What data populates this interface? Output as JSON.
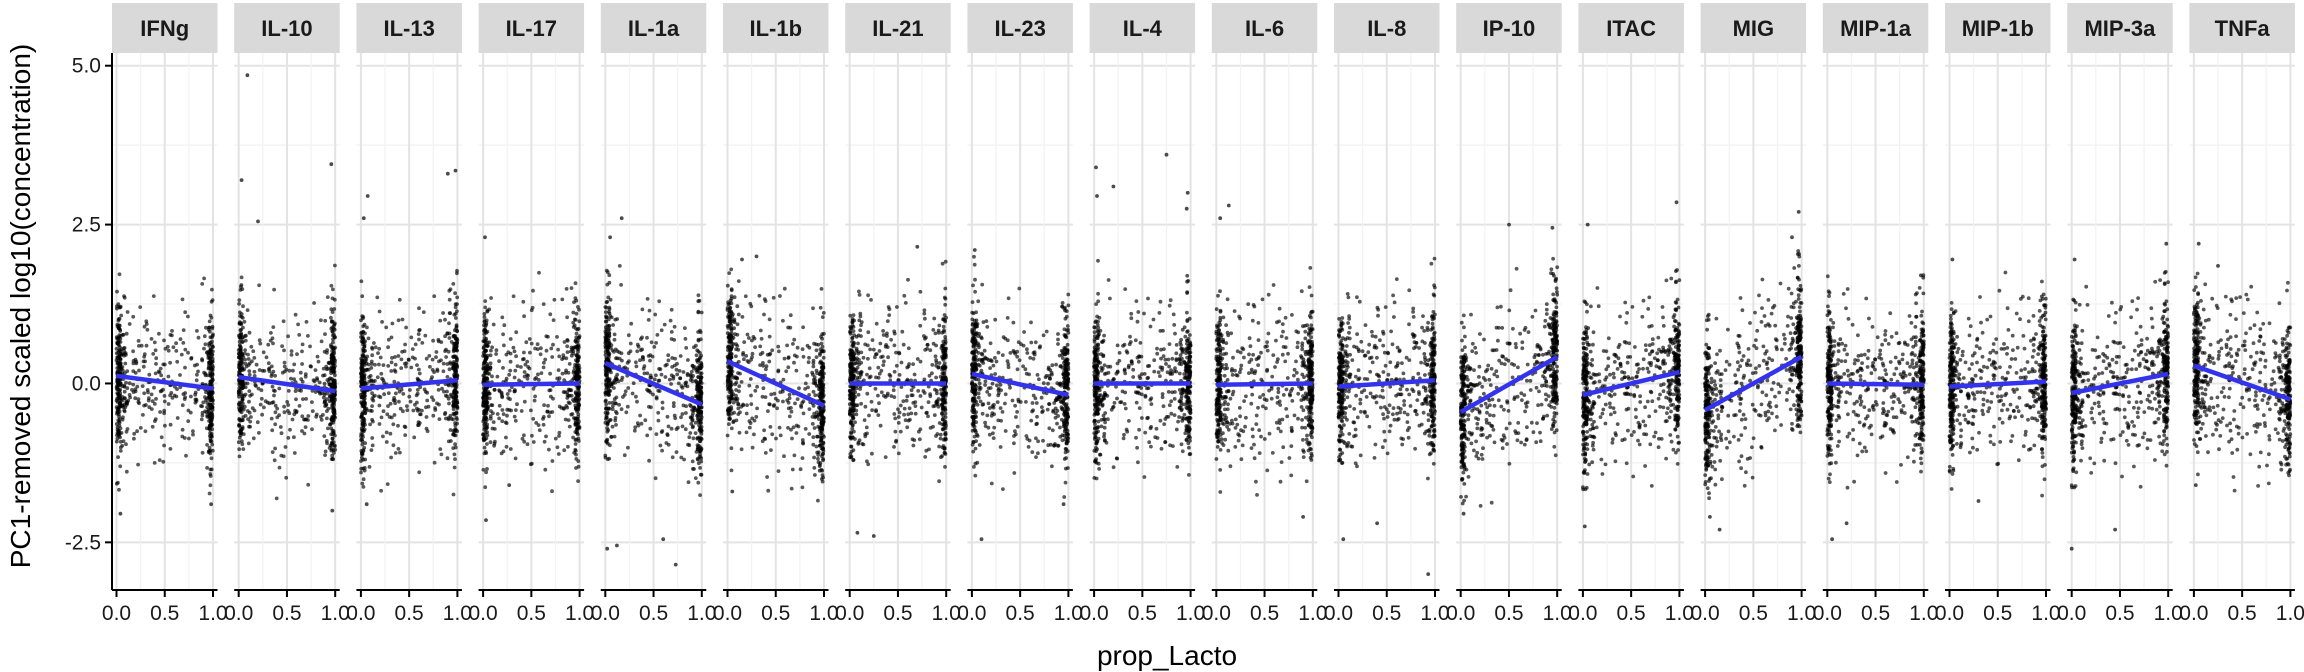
{
  "chart_data": {
    "type": "scatter",
    "subtype": "faceted scatter with linear fit lines",
    "xlabel": "prop_Lacto",
    "ylabel": "PC1-removed scaled log10(concentration)",
    "xlim": [
      0,
      1
    ],
    "ylim": [
      -3.25,
      5.2
    ],
    "x_ticks": [
      0.0,
      0.5,
      1.0
    ],
    "x_tick_labels": [
      "0.0",
      "0.5",
      "1.0"
    ],
    "y_ticks": [
      -2.5,
      0.0,
      2.5,
      5.0
    ],
    "y_tick_labels": [
      "-2.5",
      "0.0",
      "2.5",
      "5.0"
    ],
    "grid": true,
    "point_color": "#000000",
    "fit_line_color": "#3333ee",
    "strip_color": "#d9d9d9",
    "panels": [
      {
        "label": "IFNg",
        "fit": [
          0.12,
          -0.08
        ],
        "outliers": [
          [
            0.04,
            -2.05
          ],
          [
            0.98,
            -1.9
          ]
        ]
      },
      {
        "label": "IL-10",
        "fit": [
          0.1,
          -0.12
        ],
        "outliers": [
          [
            0.09,
            4.85
          ],
          [
            0.03,
            3.2
          ],
          [
            0.96,
            3.45
          ],
          [
            0.2,
            2.55
          ],
          [
            0.97,
            -2.0
          ]
        ]
      },
      {
        "label": "IL-13",
        "fit": [
          -0.08,
          0.05
        ],
        "outliers": [
          [
            0.07,
            2.95
          ],
          [
            0.9,
            3.3
          ],
          [
            0.98,
            3.35
          ],
          [
            0.03,
            2.6
          ],
          [
            0.06,
            -1.9
          ]
        ]
      },
      {
        "label": "IL-17",
        "fit": [
          -0.02,
          0.0
        ],
        "outliers": [
          [
            0.02,
            2.3
          ],
          [
            0.03,
            -2.15
          ],
          [
            0.27,
            -1.6
          ]
        ]
      },
      {
        "label": "IL-1a",
        "fit": [
          0.32,
          -0.33
        ],
        "outliers": [
          [
            0.17,
            2.6
          ],
          [
            0.02,
            -2.6
          ],
          [
            0.12,
            -2.55
          ],
          [
            0.73,
            -2.85
          ],
          [
            0.6,
            -2.45
          ],
          [
            0.05,
            2.3
          ]
        ]
      },
      {
        "label": "IL-1b",
        "fit": [
          0.35,
          -0.35
        ],
        "outliers": [
          [
            0.3,
            2.0
          ],
          [
            0.05,
            -1.7
          ],
          [
            0.15,
            1.95
          ]
        ]
      },
      {
        "label": "IL-21",
        "fit": [
          0.0,
          0.0
        ],
        "outliers": [
          [
            0.08,
            -2.35
          ],
          [
            0.25,
            -2.4
          ],
          [
            0.7,
            2.15
          ]
        ]
      },
      {
        "label": "IL-23",
        "fit": [
          0.15,
          -0.18
        ],
        "outliers": [
          [
            0.1,
            -2.45
          ],
          [
            0.03,
            2.1
          ],
          [
            0.95,
            -1.9
          ]
        ]
      },
      {
        "label": "IL-4",
        "fit": [
          0.0,
          0.0
        ],
        "outliers": [
          [
            0.02,
            3.4
          ],
          [
            0.75,
            3.6
          ],
          [
            0.97,
            3.0
          ],
          [
            0.03,
            2.95
          ],
          [
            0.2,
            3.1
          ],
          [
            0.96,
            2.75
          ]
        ]
      },
      {
        "label": "IL-6",
        "fit": [
          -0.02,
          0.0
        ],
        "outliers": [
          [
            0.13,
            2.8
          ],
          [
            0.04,
            2.6
          ],
          [
            0.9,
            -2.1
          ]
        ]
      },
      {
        "label": "IL-8",
        "fit": [
          -0.05,
          0.05
        ],
        "outliers": [
          [
            0.93,
            -3.0
          ],
          [
            0.05,
            -2.45
          ],
          [
            0.4,
            -2.2
          ]
        ]
      },
      {
        "label": "IP-10",
        "fit": [
          -0.45,
          0.42
        ],
        "outliers": [
          [
            0.5,
            2.5
          ],
          [
            0.95,
            2.45
          ],
          [
            0.03,
            -2.05
          ]
        ]
      },
      {
        "label": "ITAC",
        "fit": [
          -0.18,
          0.18
        ],
        "outliers": [
          [
            0.05,
            2.5
          ],
          [
            0.97,
            2.85
          ],
          [
            0.02,
            -2.25
          ]
        ]
      },
      {
        "label": "MIG",
        "fit": [
          -0.42,
          0.42
        ],
        "outliers": [
          [
            0.97,
            2.7
          ],
          [
            0.9,
            2.3
          ],
          [
            0.05,
            -2.1
          ],
          [
            0.15,
            -2.3
          ]
        ]
      },
      {
        "label": "MIP-1a",
        "fit": [
          0.0,
          -0.02
        ],
        "outliers": [
          [
            0.2,
            -2.2
          ],
          [
            0.05,
            -2.45
          ],
          [
            0.97,
            1.7
          ]
        ]
      },
      {
        "label": "MIP-1b",
        "fit": [
          -0.05,
          0.03
        ],
        "outliers": [
          [
            0.3,
            -1.85
          ],
          [
            0.03,
            1.95
          ]
        ]
      },
      {
        "label": "MIP-3a",
        "fit": [
          -0.15,
          0.15
        ],
        "outliers": [
          [
            0.03,
            1.95
          ],
          [
            0.0,
            -2.6
          ],
          [
            0.45,
            -2.3
          ],
          [
            0.98,
            2.2
          ]
        ]
      },
      {
        "label": "TNFa",
        "fit": [
          0.28,
          -0.25
        ],
        "outliers": [
          [
            0.05,
            2.2
          ],
          [
            0.25,
            1.85
          ],
          [
            0.02,
            -1.6
          ]
        ]
      }
    ]
  }
}
